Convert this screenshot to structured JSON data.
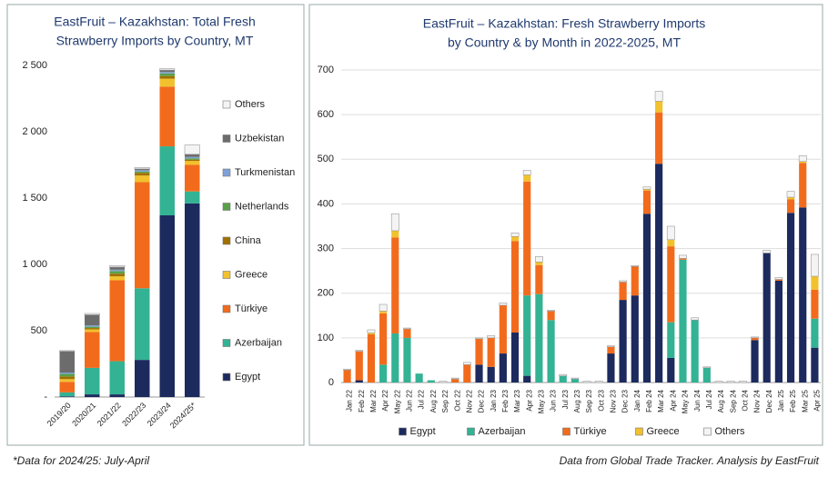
{
  "chart_data": [
    {
      "type": "bar",
      "stacked": true,
      "grid": false,
      "legend": "right",
      "title": [
        "EastFruit – Kazakhstan: Total Fresh",
        "Strawberry Imports by Country, MT"
      ],
      "categories": [
        "2019/20",
        "2020/21",
        "2021/22",
        "2022/23",
        "2023/24",
        "2024/25*"
      ],
      "ylim": [
        0,
        2500
      ],
      "yticks": [
        {
          "value": 0,
          "label": "-"
        },
        500,
        {
          "value": 1000,
          "label": "1 000"
        },
        {
          "value": 1500,
          "label": "1 500"
        },
        {
          "value": 2000,
          "label": "2 000"
        },
        {
          "value": 2500,
          "label": "2 500"
        }
      ],
      "series": [
        {
          "name": "Egypt",
          "color": "#1c2a5e",
          "values": [
            5,
            20,
            20,
            280,
            1370,
            1460
          ]
        },
        {
          "name": "Azerbaijan",
          "color": "#33b294",
          "values": [
            30,
            200,
            250,
            540,
            520,
            90
          ]
        },
        {
          "name": "Türkiye",
          "color": "#f26b1d",
          "values": [
            80,
            270,
            610,
            800,
            450,
            200
          ]
        },
        {
          "name": "Greece",
          "color": "#f2c12e",
          "values": [
            20,
            20,
            30,
            50,
            60,
            30
          ]
        },
        {
          "name": "China",
          "color": "#a07000",
          "values": [
            20,
            10,
            20,
            20,
            20,
            10
          ]
        },
        {
          "name": "Netherlands",
          "color": "#5aa04a",
          "values": [
            20,
            10,
            20,
            10,
            20,
            10
          ]
        },
        {
          "name": "Turkmenistan",
          "color": "#7fa0d8",
          "values": [
            10,
            10,
            10,
            10,
            10,
            10
          ]
        },
        {
          "name": "Uzbekistan",
          "color": "#6c6c6c",
          "values": [
            160,
            80,
            20,
            10,
            15,
            20
          ]
        },
        {
          "name": "Others",
          "color": "#f4f4f4",
          "values": [
            5,
            10,
            10,
            10,
            10,
            70
          ]
        }
      ]
    },
    {
      "type": "bar",
      "stacked": true,
      "grid": true,
      "legend": "bottom",
      "title": [
        "EastFruit – Kazakhstan: Fresh Strawberry Imports",
        "by Country & by Month in 2022-2025, MT"
      ],
      "categories": [
        "Jan 22",
        "Feb 22",
        "Mar 22",
        "Apr 22",
        "May 22",
        "Jun 22",
        "Jul 22",
        "Aug 22",
        "Sep 22",
        "Oct 22",
        "Nov 22",
        "Dec 22",
        "Jan 23",
        "Feb 23",
        "Mar 23",
        "Apr 23",
        "May 23",
        "Jun 23",
        "Jul 23",
        "Aug 23",
        "Sep 23",
        "Oct 23",
        "Nov 23",
        "Dec 23",
        "Jan 24",
        "Feb 24",
        "Mar 24",
        "Apr 24",
        "May 24",
        "Jun 24",
        "Jul 24",
        "Aug 24",
        "Sep 24",
        "Oct 24",
        "Nov 24",
        "Dec 24",
        "Jan 25",
        "Feb 25",
        "Mar 25",
        "Apr 25"
      ],
      "ylim": [
        0,
        700
      ],
      "yticks": [
        0,
        100,
        200,
        300,
        400,
        500,
        600,
        700
      ],
      "series": [
        {
          "name": "Egypt",
          "color": "#1c2a5e",
          "values": [
            0,
            5,
            0,
            0,
            0,
            0,
            0,
            0,
            0,
            0,
            0,
            40,
            35,
            65,
            112,
            15,
            0,
            0,
            0,
            0,
            0,
            0,
            65,
            185,
            195,
            378,
            490,
            55,
            0,
            0,
            0,
            0,
            0,
            0,
            95,
            290,
            228,
            380,
            392,
            78
          ]
        },
        {
          "name": "Azerbaijan",
          "color": "#33b294",
          "values": [
            0,
            0,
            0,
            40,
            110,
            100,
            20,
            5,
            0,
            0,
            0,
            0,
            0,
            0,
            0,
            180,
            198,
            140,
            15,
            8,
            0,
            0,
            0,
            0,
            0,
            0,
            0,
            80,
            275,
            140,
            33,
            0,
            0,
            0,
            0,
            0,
            0,
            0,
            0,
            65
          ]
        },
        {
          "name": "Türkiye",
          "color": "#f26b1d",
          "values": [
            28,
            65,
            108,
            115,
            215,
            20,
            0,
            0,
            0,
            8,
            40,
            58,
            65,
            108,
            205,
            255,
            65,
            20,
            0,
            0,
            0,
            0,
            15,
            40,
            65,
            52,
            115,
            170,
            3,
            0,
            0,
            0,
            0,
            0,
            5,
            0,
            3,
            30,
            100,
            65
          ]
        },
        {
          "name": "Greece",
          "color": "#f2c12e",
          "values": [
            0,
            0,
            3,
            5,
            15,
            0,
            0,
            0,
            0,
            0,
            0,
            0,
            0,
            0,
            10,
            15,
            7,
            0,
            0,
            0,
            0,
            0,
            0,
            0,
            0,
            3,
            25,
            15,
            0,
            0,
            0,
            0,
            0,
            0,
            0,
            0,
            0,
            5,
            3,
            30
          ]
        },
        {
          "name": "Others",
          "color": "#f4f4f4",
          "values": [
            2,
            2,
            7,
            15,
            38,
            2,
            0,
            0,
            3,
            2,
            5,
            2,
            5,
            5,
            8,
            10,
            12,
            2,
            3,
            2,
            3,
            3,
            2,
            3,
            2,
            5,
            22,
            30,
            7,
            5,
            2,
            3,
            3,
            3,
            2,
            6,
            4,
            13,
            13,
            49
          ]
        }
      ]
    }
  ],
  "notes": {
    "footnote": "*Data for 2024/25: July-April",
    "source": "Data from Global Trade Tracker. Analysis by EastFruit"
  }
}
